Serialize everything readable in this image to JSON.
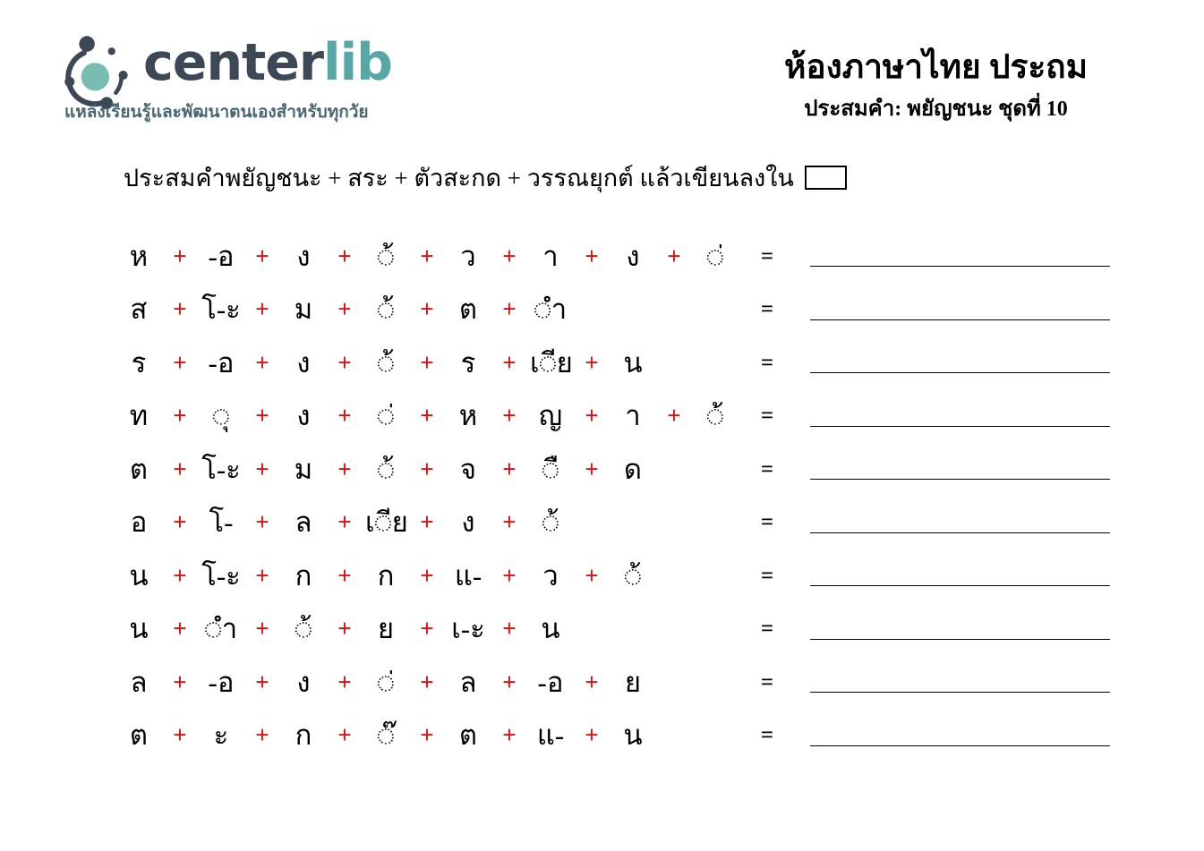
{
  "logo": {
    "brand_center": "center",
    "brand_lib": "lib",
    "tagline": "แหล่งเรียนรู้และพัฒนาตนเองสำหรับทุกวัย",
    "colors": {
      "dark": "#3d4856",
      "teal": "#58a7a7",
      "icon_center": "#79bcb2"
    }
  },
  "header": {
    "title": "ห้องภาษาไทย ประถม",
    "subtitle": "ประสมคำ: พยัญชนะ ชุดที่ 10"
  },
  "instruction": {
    "text": "ประสมคำพยัญชนะ + สระ + ตัวสะกด + วรรณยุกต์ แล้วเขียนลงใน"
  },
  "symbols": {
    "plus": "+",
    "equals": "=",
    "plus_color": "#e01010"
  },
  "rows": [
    {
      "parts": [
        "ห",
        "-อ",
        "ง",
        "◌้",
        "ว",
        "า",
        "ง",
        "◌่"
      ]
    },
    {
      "parts": [
        "ส",
        "โ-ะ",
        "ม",
        "◌้",
        "ต",
        "◌ำ"
      ]
    },
    {
      "parts": [
        "ร",
        "-อ",
        "ง",
        "◌้",
        "ร",
        "เ◌ีย",
        "น"
      ]
    },
    {
      "parts": [
        "ท",
        "◌ุ",
        "ง",
        "◌่",
        "ห",
        "ญ",
        "า",
        "◌้"
      ]
    },
    {
      "parts": [
        "ต",
        "โ-ะ",
        "ม",
        "◌้",
        "จ",
        "◌ื",
        "ด"
      ]
    },
    {
      "parts": [
        "อ",
        "โ-",
        "ล",
        "เ◌ีย",
        "ง",
        "◌้"
      ]
    },
    {
      "parts": [
        "น",
        "โ-ะ",
        "ก",
        "ก",
        "แ-",
        "ว",
        "◌้"
      ]
    },
    {
      "parts": [
        "น",
        "◌ำ",
        "◌้",
        "ย",
        "เ-ะ",
        "น"
      ]
    },
    {
      "parts": [
        "ล",
        "-อ",
        "ง",
        "◌่",
        "ล",
        "-อ",
        "ย"
      ]
    },
    {
      "parts": [
        "ต",
        "ะ",
        "ก",
        "◌๊",
        "ต",
        "แ-",
        "น"
      ]
    }
  ]
}
